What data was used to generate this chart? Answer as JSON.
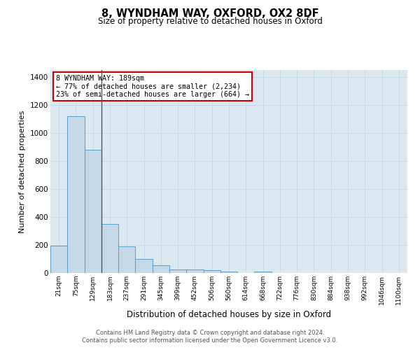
{
  "title_line1": "8, WYNDHAM WAY, OXFORD, OX2 8DF",
  "title_line2": "Size of property relative to detached houses in Oxford",
  "xlabel": "Distribution of detached houses by size in Oxford",
  "ylabel": "Number of detached properties",
  "bin_labels": [
    "21sqm",
    "75sqm",
    "129sqm",
    "183sqm",
    "237sqm",
    "291sqm",
    "345sqm",
    "399sqm",
    "452sqm",
    "506sqm",
    "560sqm",
    "614sqm",
    "668sqm",
    "722sqm",
    "776sqm",
    "830sqm",
    "884sqm",
    "938sqm",
    "992sqm",
    "1046sqm",
    "1100sqm"
  ],
  "bar_heights": [
    195,
    1120,
    880,
    350,
    190,
    100,
    55,
    25,
    25,
    20,
    10,
    0,
    10,
    0,
    0,
    0,
    0,
    0,
    0,
    0,
    0
  ],
  "bar_color": "#c5d8e8",
  "bar_edge_color": "#5a9ec8",
  "annotation_title": "8 WYNDHAM WAY: 189sqm",
  "annotation_line1": "← 77% of detached houses are smaller (2,234)",
  "annotation_line2": "23% of semi-detached houses are larger (664) →",
  "annotation_box_color": "#ffffff",
  "annotation_box_edge_color": "#cc0000",
  "vline_color": "#555555",
  "vline_x": 2.5,
  "ylim": [
    0,
    1450
  ],
  "yticks": [
    0,
    200,
    400,
    600,
    800,
    1000,
    1200,
    1400
  ],
  "grid_color": "#c8d8e8",
  "bg_color": "#dce8f0",
  "footer_line1": "Contains HM Land Registry data © Crown copyright and database right 2024.",
  "footer_line2": "Contains public sector information licensed under the Open Government Licence v3.0."
}
